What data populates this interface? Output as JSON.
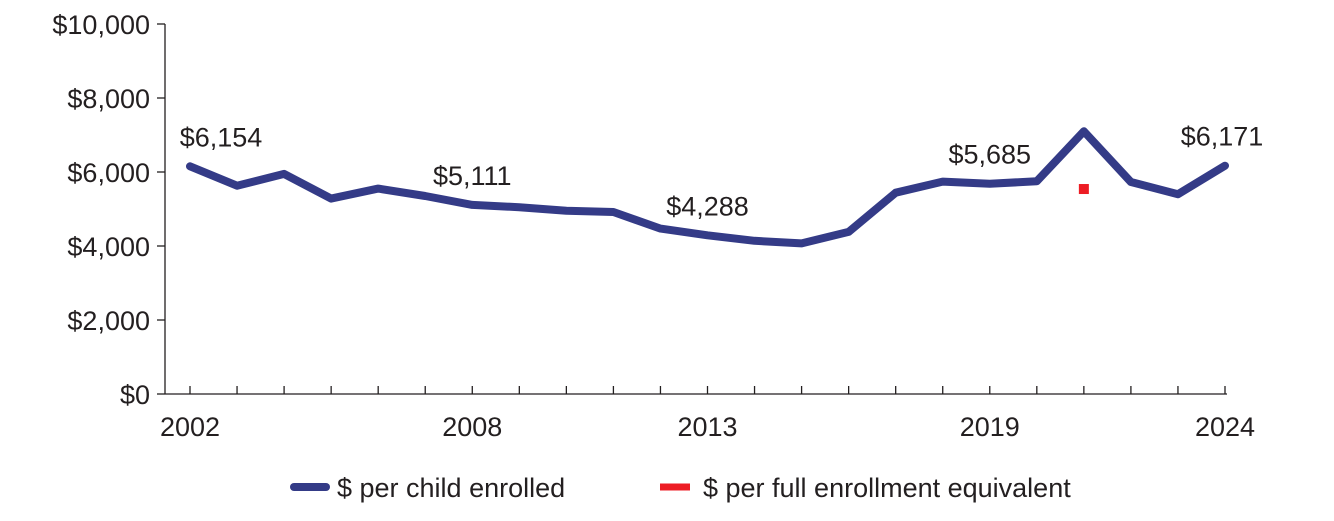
{
  "chart_data": {
    "type": "line",
    "title": "",
    "xlabel": "",
    "ylabel": "",
    "ylim": [
      0,
      10000
    ],
    "xlim": [
      2002,
      2024
    ],
    "y_ticks": [
      0,
      2000,
      4000,
      6000,
      8000,
      10000
    ],
    "y_tick_labels": [
      "$0",
      "$2,000",
      "$4,000",
      "$6,000",
      "$8,000",
      "$10,000"
    ],
    "x_tick_labels_shown": [
      2002,
      2008,
      2013,
      2019,
      2024
    ],
    "grid": false,
    "legend_position": "bottom",
    "series": [
      {
        "name": "$ per child enrolled",
        "color": "#343b87",
        "style": "line",
        "x": [
          2002,
          2003,
          2004,
          2005,
          2006,
          2007,
          2008,
          2009,
          2010,
          2011,
          2012,
          2013,
          2014,
          2015,
          2016,
          2017,
          2018,
          2019,
          2020,
          2021,
          2022,
          2023,
          2024
        ],
        "values": [
          6154,
          5630,
          5950,
          5280,
          5550,
          5350,
          5111,
          5050,
          4950,
          4920,
          4470,
          4288,
          4140,
          4070,
          4380,
          5440,
          5740,
          5685,
          5750,
          7100,
          5730,
          5400,
          6171
        ]
      },
      {
        "name": "$ per full enrollment equivalent",
        "color": "#ed1c24",
        "style": "marker",
        "x": [
          2021
        ],
        "values": [
          5540
        ]
      }
    ],
    "data_labels": [
      {
        "x": 2002,
        "text": "$6,154"
      },
      {
        "x": 2008,
        "text": "$5,111"
      },
      {
        "x": 2013,
        "text": "$4,288"
      },
      {
        "x": 2019,
        "text": "$5,685"
      },
      {
        "x": 2024,
        "text": "$6,171"
      }
    ]
  }
}
